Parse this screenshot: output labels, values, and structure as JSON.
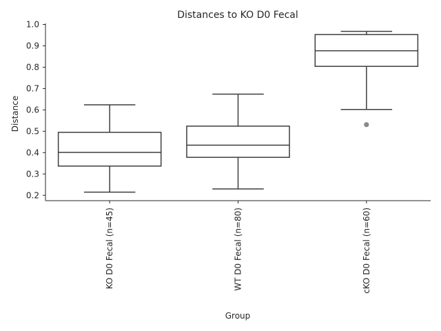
{
  "chart_data": {
    "type": "box",
    "title": "Distances to KO D0 Fecal",
    "xlabel": "Group",
    "ylabel": "Distance",
    "ylim": [
      0.175,
      1.005
    ],
    "yticks": [
      0.2,
      0.3,
      0.4,
      0.5,
      0.6,
      0.7,
      0.8,
      0.9,
      1.0
    ],
    "ytick_labels": [
      "0.2",
      "0.3",
      "0.4",
      "0.5",
      "0.6",
      "0.7",
      "0.8",
      "0.9",
      "1.0"
    ],
    "grid": false,
    "categories": [
      "KO D0 Fecal (n=45)",
      "WT D0 Fecal (n=80)",
      "cKO D0 Fecal (n=60)"
    ],
    "boxes": [
      {
        "whisker_low": 0.215,
        "q1": 0.337,
        "median": 0.401,
        "q3": 0.495,
        "whisker_high": 0.624,
        "outliers": []
      },
      {
        "whisker_low": 0.23,
        "q1": 0.378,
        "median": 0.435,
        "q3": 0.524,
        "whisker_high": 0.674,
        "outliers": []
      },
      {
        "whisker_low": 0.602,
        "q1": 0.804,
        "median": 0.877,
        "q3": 0.953,
        "whisker_high": 0.968,
        "outliers": [
          0.531
        ]
      }
    ],
    "colors": {
      "box_fill": "#ffffff",
      "box_stroke": "#3d3d3d",
      "axis": "#262626",
      "outlier": "#8c8c8c"
    }
  }
}
